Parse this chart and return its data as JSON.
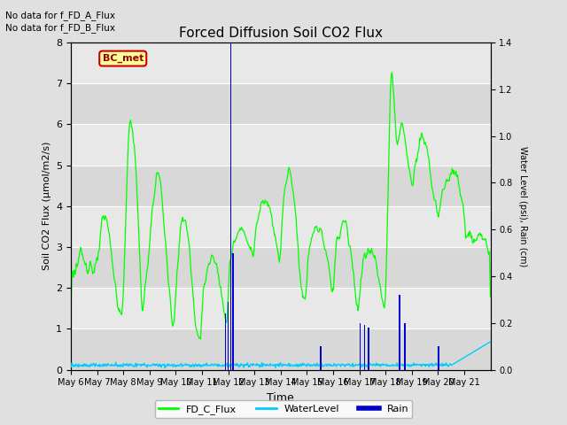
{
  "title": "Forced Diffusion Soil CO2 Flux",
  "xlabel": "Time",
  "ylabel_left": "Soil CO2 Flux (μmol/m2/s)",
  "ylabel_right": "Water Level (psi), Rain (cm)",
  "text_no_data_1": "No data for f_FD_A_Flux",
  "text_no_data_2": "No data for f_FD_B_Flux",
  "bc_met_label": "BC_met",
  "legend_entries": [
    "FD_C_Flux",
    "WaterLevel",
    "Rain"
  ],
  "legend_colors": [
    "#00ff00",
    "#00ccff",
    "#0000bb"
  ],
  "ylim_left": [
    0.0,
    8.0
  ],
  "ylim_right": [
    0.0,
    1.4
  ],
  "x_tick_labels": [
    "May 6",
    "May 7",
    "May 8",
    "May 9",
    "May 10",
    "May 11",
    "May 12",
    "May 13",
    "May 14",
    "May 15",
    "May 16",
    "May 17",
    "May 18",
    "May 19",
    "May 20",
    "May 21"
  ],
  "fig_bg_color": "#e0e0e0",
  "plot_bg_color": "#e8e8e8",
  "alt_band_color": "#d8d8d8"
}
